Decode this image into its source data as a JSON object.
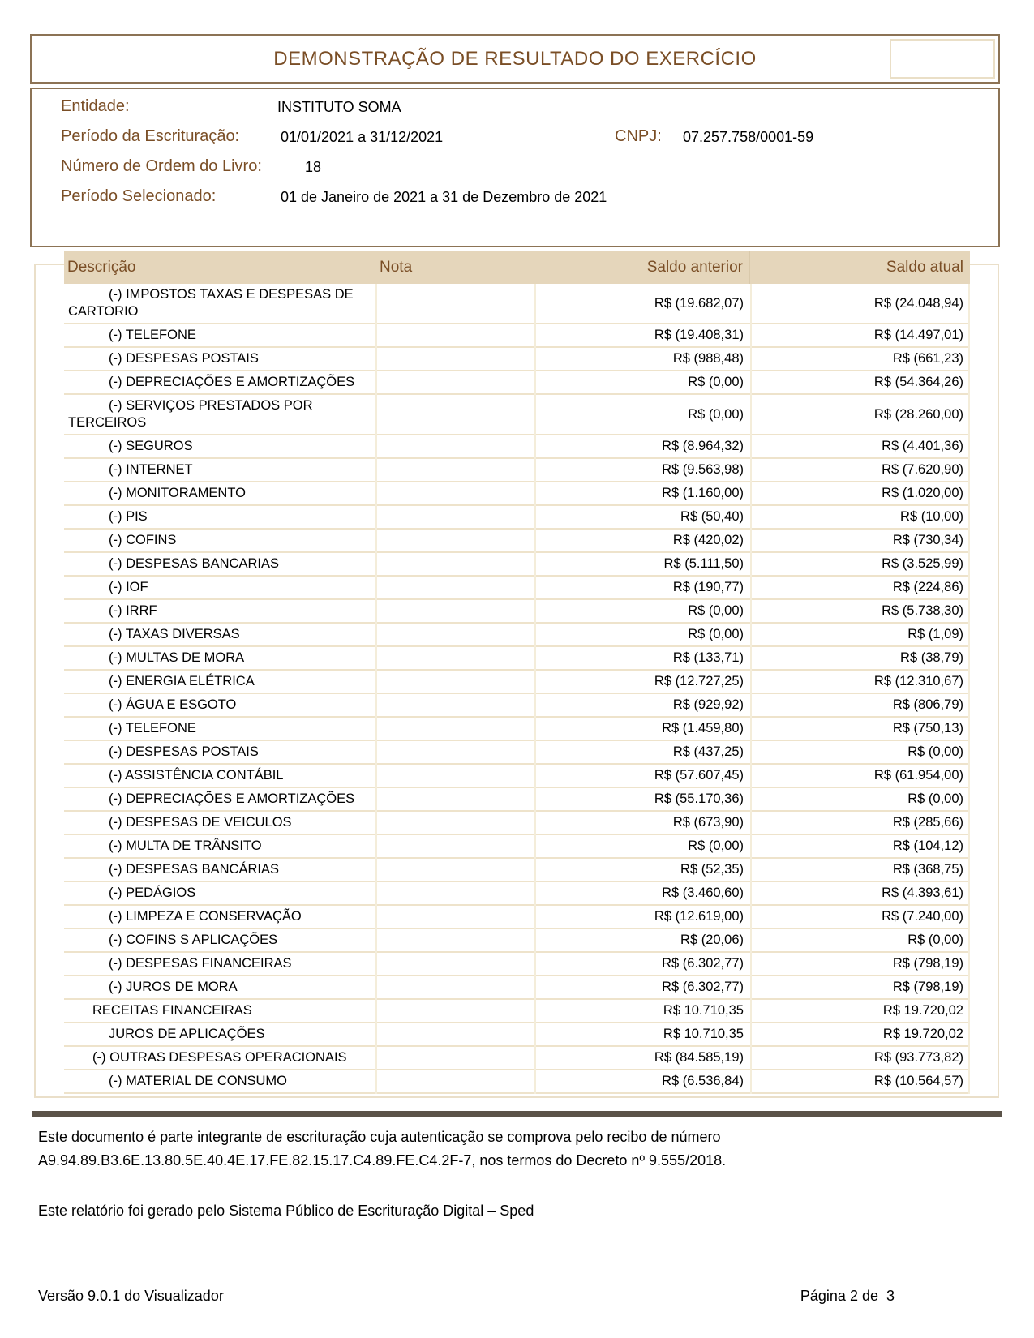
{
  "header": {
    "title": "DEMONSTRAÇÃO DE RESULTADO DO EXERCÍCIO"
  },
  "info": {
    "entidade_label": "Entidade:",
    "entidade_value": "INSTITUTO SOMA",
    "periodo_escrituracao_label": "Período da Escrituração:",
    "periodo_escrituracao_value": "01/01/2021 a 31/12/2021",
    "cnpj_label": "CNPJ:",
    "cnpj_value": "07.257.758/0001-59",
    "numero_ordem_label": "Número de Ordem do Livro:",
    "numero_ordem_value": "18",
    "periodo_selecionado_label": "Período Selecionado:",
    "periodo_selecionado_value": "01 de Janeiro de 2021 a 31 de Dezembro de 2021"
  },
  "table": {
    "columns": [
      "Descrição",
      "Nota",
      "Saldo anterior",
      "Saldo atual"
    ],
    "rows": [
      {
        "descricao": "(-) IMPOSTOS TAXAS E DESPESAS DE CARTORIO",
        "nota": "",
        "saldo_anterior": "R$ (19.682,07)",
        "saldo_atual": "R$ (24.048,94)",
        "indent": 1
      },
      {
        "descricao": "(-) TELEFONE",
        "nota": "",
        "saldo_anterior": "R$ (19.408,31)",
        "saldo_atual": "R$ (14.497,01)",
        "indent": 1
      },
      {
        "descricao": "(-) DESPESAS POSTAIS",
        "nota": "",
        "saldo_anterior": "R$ (988,48)",
        "saldo_atual": "R$ (661,23)",
        "indent": 1
      },
      {
        "descricao": "(-) DEPRECIAÇÕES E AMORTIZAÇÕES",
        "nota": "",
        "saldo_anterior": "R$ (0,00)",
        "saldo_atual": "R$ (54.364,26)",
        "indent": 1
      },
      {
        "descricao": "(-) SERVIÇOS PRESTADOS POR TERCEIROS",
        "nota": "",
        "saldo_anterior": "R$ (0,00)",
        "saldo_atual": "R$ (28.260,00)",
        "indent": 1
      },
      {
        "descricao": "(-) SEGUROS",
        "nota": "",
        "saldo_anterior": "R$ (8.964,32)",
        "saldo_atual": "R$ (4.401,36)",
        "indent": 1
      },
      {
        "descricao": "(-) INTERNET",
        "nota": "",
        "saldo_anterior": "R$ (9.563,98)",
        "saldo_atual": "R$ (7.620,90)",
        "indent": 1
      },
      {
        "descricao": "(-) MONITORAMENTO",
        "nota": "",
        "saldo_anterior": "R$ (1.160,00)",
        "saldo_atual": "R$ (1.020,00)",
        "indent": 1
      },
      {
        "descricao": "(-) PIS",
        "nota": "",
        "saldo_anterior": "R$ (50,40)",
        "saldo_atual": "R$ (10,00)",
        "indent": 1
      },
      {
        "descricao": "(-) COFINS",
        "nota": "",
        "saldo_anterior": "R$ (420,02)",
        "saldo_atual": "R$ (730,34)",
        "indent": 1
      },
      {
        "descricao": "(-) DESPESAS BANCARIAS",
        "nota": "",
        "saldo_anterior": "R$ (5.111,50)",
        "saldo_atual": "R$ (3.525,99)",
        "indent": 1
      },
      {
        "descricao": "(-) IOF",
        "nota": "",
        "saldo_anterior": "R$ (190,77)",
        "saldo_atual": "R$ (224,86)",
        "indent": 1
      },
      {
        "descricao": "(-) IRRF",
        "nota": "",
        "saldo_anterior": "R$ (0,00)",
        "saldo_atual": "R$ (5.738,30)",
        "indent": 1
      },
      {
        "descricao": "(-) TAXAS DIVERSAS",
        "nota": "",
        "saldo_anterior": "R$ (0,00)",
        "saldo_atual": "R$ (1,09)",
        "indent": 1
      },
      {
        "descricao": "(-) MULTAS DE MORA",
        "nota": "",
        "saldo_anterior": "R$ (133,71)",
        "saldo_atual": "R$ (38,79)",
        "indent": 1
      },
      {
        "descricao": "(-) ENERGIA ELÉTRICA",
        "nota": "",
        "saldo_anterior": "R$ (12.727,25)",
        "saldo_atual": "R$ (12.310,67)",
        "indent": 1
      },
      {
        "descricao": "(-) ÁGUA E ESGOTO",
        "nota": "",
        "saldo_anterior": "R$ (929,92)",
        "saldo_atual": "R$ (806,79)",
        "indent": 1
      },
      {
        "descricao": "(-) TELEFONE",
        "nota": "",
        "saldo_anterior": "R$ (1.459,80)",
        "saldo_atual": "R$ (750,13)",
        "indent": 1
      },
      {
        "descricao": "(-) DESPESAS POSTAIS",
        "nota": "",
        "saldo_anterior": "R$ (437,25)",
        "saldo_atual": "R$ (0,00)",
        "indent": 1
      },
      {
        "descricao": "(-) ASSISTÊNCIA CONTÁBIL",
        "nota": "",
        "saldo_anterior": "R$ (57.607,45)",
        "saldo_atual": "R$ (61.954,00)",
        "indent": 1
      },
      {
        "descricao": "(-) DEPRECIAÇÕES E AMORTIZAÇÕES",
        "nota": "",
        "saldo_anterior": "R$ (55.170,36)",
        "saldo_atual": "R$ (0,00)",
        "indent": 1
      },
      {
        "descricao": "(-) DESPESAS DE VEICULOS",
        "nota": "",
        "saldo_anterior": "R$ (673,90)",
        "saldo_atual": "R$ (285,66)",
        "indent": 1
      },
      {
        "descricao": "(-) MULTA DE TRÂNSITO",
        "nota": "",
        "saldo_anterior": "R$ (0,00)",
        "saldo_atual": "R$ (104,12)",
        "indent": 1
      },
      {
        "descricao": "(-) DESPESAS BANCÁRIAS",
        "nota": "",
        "saldo_anterior": "R$ (52,35)",
        "saldo_atual": "R$ (368,75)",
        "indent": 1
      },
      {
        "descricao": "(-) PEDÁGIOS",
        "nota": "",
        "saldo_anterior": "R$ (3.460,60)",
        "saldo_atual": "R$ (4.393,61)",
        "indent": 1
      },
      {
        "descricao": "(-) LIMPEZA E CONSERVAÇÃO",
        "nota": "",
        "saldo_anterior": "R$ (12.619,00)",
        "saldo_atual": "R$ (7.240,00)",
        "indent": 1
      },
      {
        "descricao": "(-) COFINS S APLICAÇÕES",
        "nota": "",
        "saldo_anterior": "R$ (20,06)",
        "saldo_atual": "R$ (0,00)",
        "indent": 1
      },
      {
        "descricao": "(-) DESPESAS FINANCEIRAS",
        "nota": "",
        "saldo_anterior": "R$ (6.302,77)",
        "saldo_atual": "R$ (798,19)",
        "indent": 1
      },
      {
        "descricao": "(-) JUROS DE MORA",
        "nota": "",
        "saldo_anterior": "R$ (6.302,77)",
        "saldo_atual": "R$ (798,19)",
        "indent": 1
      },
      {
        "descricao": "RECEITAS FINANCEIRAS",
        "nota": "",
        "saldo_anterior": "R$ 10.710,35",
        "saldo_atual": "R$ 19.720,02",
        "indent": 0
      },
      {
        "descricao": "JUROS DE APLICAÇÕES",
        "nota": "",
        "saldo_anterior": "R$ 10.710,35",
        "saldo_atual": "R$ 19.720,02",
        "indent": 1
      },
      {
        "descricao": "(-) OUTRAS DESPESAS OPERACIONAIS",
        "nota": "",
        "saldo_anterior": "R$ (84.585,19)",
        "saldo_atual": "R$ (93.773,82)",
        "indent": 0
      },
      {
        "descricao": "(-) MATERIAL DE CONSUMO",
        "nota": "",
        "saldo_anterior": "R$ (6.536,84)",
        "saldo_atual": "R$ (10.564,57)",
        "indent": 1
      }
    ]
  },
  "footer": {
    "auth_text": "Este documento é parte integrante de escrituração cuja autenticação se comprova pelo recibo de número A9.94.89.B3.6E.13.80.5E.40.4E.17.FE.82.15.17.C4.89.FE.C4.2F-7, nos termos do Decreto nº 9.555/2018.",
    "generated_text": "Este relatório foi gerado pelo Sistema Público de Escrituração Digital – Sped",
    "version_text": "Versão 9.0.1 do Visualizador",
    "page_text": "Página 2 de  3"
  },
  "colors": {
    "brand_brown_text": "#7a4e26",
    "box_border_brown": "#8c7355",
    "table_header_bg": "#e5d6bb",
    "row_separator": "#eee3cb",
    "footer_bar": "#5b5349"
  }
}
